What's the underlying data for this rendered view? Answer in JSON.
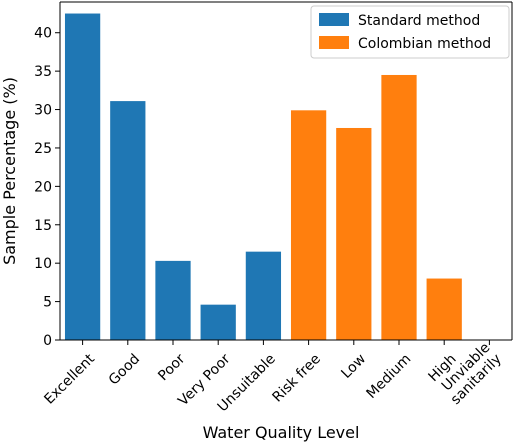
{
  "chart_data": {
    "type": "bar",
    "categories": [
      "Excellent",
      "Good",
      "Poor",
      "Very Poor",
      "Unsuitable",
      "Risk free",
      "Low",
      "Medium",
      "High",
      "Unviable\nsanitarily"
    ],
    "series": [
      {
        "name": "Standard method",
        "color": "#1f77b4",
        "values": [
          42.5,
          31.1,
          10.3,
          4.6,
          11.5,
          null,
          null,
          null,
          null,
          null
        ]
      },
      {
        "name": "Colombian method",
        "color": "#ff7f0e",
        "values": [
          null,
          null,
          null,
          null,
          null,
          29.9,
          27.6,
          34.5,
          8.0,
          0
        ]
      }
    ],
    "xlabel": "Water Quality Level",
    "ylabel": "Sample Percentage (%)",
    "ylim": [
      0,
      44
    ],
    "yticks": [
      0,
      5,
      10,
      15,
      20,
      25,
      30,
      35,
      40
    ],
    "grid": false,
    "legend_position": "top-right"
  }
}
